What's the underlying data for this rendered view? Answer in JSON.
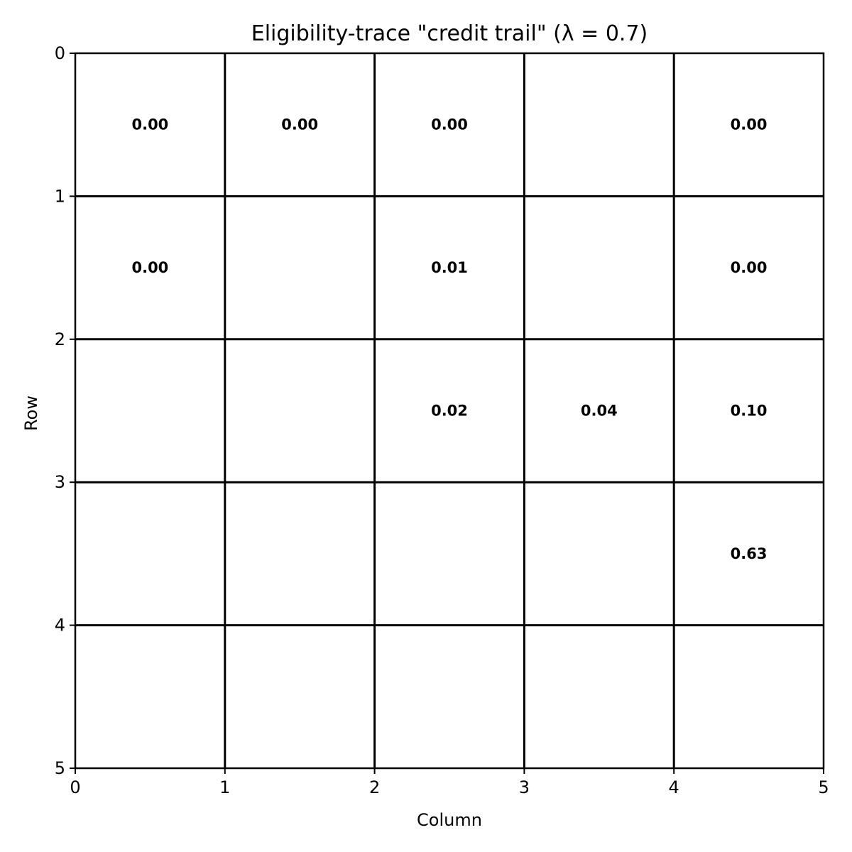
{
  "chart_data": {
    "type": "heatmap",
    "title": "Eligibility-trace \"credit trail\" (λ = 0.7)",
    "xlabel": "Column",
    "ylabel": "Row",
    "xlim": [
      0,
      5
    ],
    "ylim": [
      0,
      5
    ],
    "y_inverted": true,
    "x_ticks": [
      "0",
      "1",
      "2",
      "3",
      "4",
      "5"
    ],
    "y_ticks": [
      "0",
      "1",
      "2",
      "3",
      "4",
      "5"
    ],
    "grid": true,
    "grid_color": "#000000",
    "background_color": "#ffffff",
    "cells": [
      {
        "row": 0,
        "col": 0,
        "value": 0.0,
        "label": "0.00"
      },
      {
        "row": 0,
        "col": 1,
        "value": 0.0,
        "label": "0.00"
      },
      {
        "row": 0,
        "col": 2,
        "value": 0.0,
        "label": "0.00"
      },
      {
        "row": 0,
        "col": 4,
        "value": 0.0,
        "label": "0.00"
      },
      {
        "row": 1,
        "col": 0,
        "value": 0.0,
        "label": "0.00"
      },
      {
        "row": 1,
        "col": 2,
        "value": 0.01,
        "label": "0.01"
      },
      {
        "row": 1,
        "col": 4,
        "value": 0.0,
        "label": "0.00"
      },
      {
        "row": 2,
        "col": 2,
        "value": 0.02,
        "label": "0.02"
      },
      {
        "row": 2,
        "col": 3,
        "value": 0.04,
        "label": "0.04"
      },
      {
        "row": 2,
        "col": 4,
        "value": 0.1,
        "label": "0.10"
      },
      {
        "row": 3,
        "col": 4,
        "value": 0.63,
        "label": "0.63"
      }
    ]
  }
}
